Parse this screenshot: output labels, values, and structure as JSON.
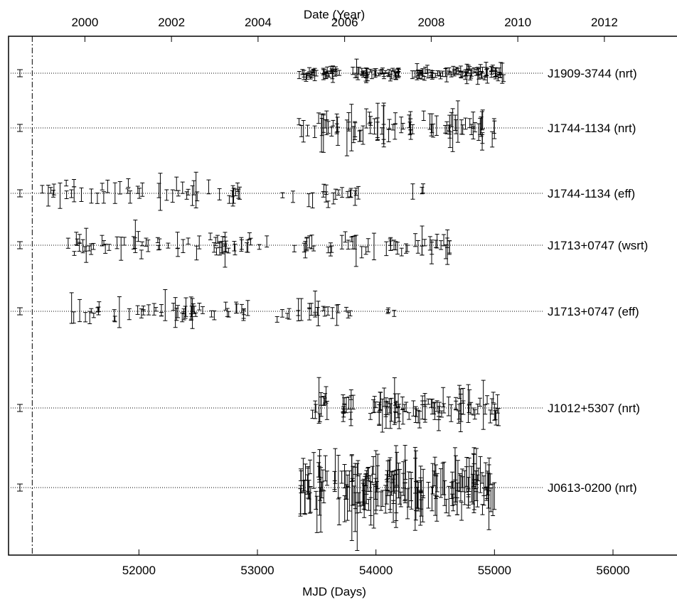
{
  "chart_data": {
    "type": "scatter",
    "top_axis_title": "Date (Year)",
    "bottom_axis_title": "MJD (Days)",
    "x_range_mjd": [
      50900,
      56600
    ],
    "top_ticks_year": [
      "2000",
      "2002",
      "2004",
      "2006",
      "2008",
      "2010",
      "2012"
    ],
    "bottom_ticks_mjd": [
      "52000",
      "53000",
      "54000",
      "55000",
      "56000"
    ],
    "reference_line_mjd": 51100,
    "grid": "dotted horizontal baseline per series",
    "legend": "labels at right end of each baseline",
    "series": [
      {
        "name": "J1909-3744 (nrt)",
        "x_start": 53350,
        "x_end": 55100,
        "spread": 0.6,
        "n": 160,
        "segments": [
          [
            53350,
            53700
          ],
          [
            53800,
            54200
          ],
          [
            54300,
            55100
          ]
        ]
      },
      {
        "name": "J1744-1134 (nrt)",
        "x_start": 53350,
        "x_end": 55000,
        "spread": 1.4,
        "n": 90,
        "segments": [
          [
            53350,
            53700
          ],
          [
            53750,
            54000
          ],
          [
            54000,
            54350
          ],
          [
            54400,
            55000
          ]
        ]
      },
      {
        "name": "J1744-1134 (eff)",
        "x_start": 51150,
        "x_end": 54400,
        "spread": 1.1,
        "n": 70,
        "segments": [
          [
            51150,
            52900
          ],
          [
            53200,
            53900
          ],
          [
            54300,
            54400
          ]
        ]
      },
      {
        "name": "J1713+0747 (wsrt)",
        "x_start": 51400,
        "x_end": 54650,
        "spread": 1.0,
        "n": 110,
        "segments": [
          [
            51400,
            53100
          ],
          [
            53300,
            54650
          ]
        ]
      },
      {
        "name": "J1713+0747 (eff)",
        "x_start": 51400,
        "x_end": 54200,
        "spread": 0.9,
        "n": 80,
        "segments": [
          [
            51400,
            52950
          ],
          [
            53150,
            53800
          ],
          [
            54100,
            54200
          ]
        ]
      },
      {
        "name": "J1012+5307 (nrt)",
        "x_start": 53450,
        "x_end": 55050,
        "spread": 1.4,
        "n": 110,
        "segments": [
          [
            53450,
            53600
          ],
          [
            53700,
            53850
          ],
          [
            53950,
            55050
          ]
        ]
      },
      {
        "name": "J0613-0200 (nrt)",
        "x_start": 53350,
        "x_end": 55000,
        "spread": 2.6,
        "n": 200,
        "segments": [
          [
            53350,
            53600
          ],
          [
            53650,
            53900
          ],
          [
            53900,
            55000
          ]
        ]
      }
    ]
  }
}
